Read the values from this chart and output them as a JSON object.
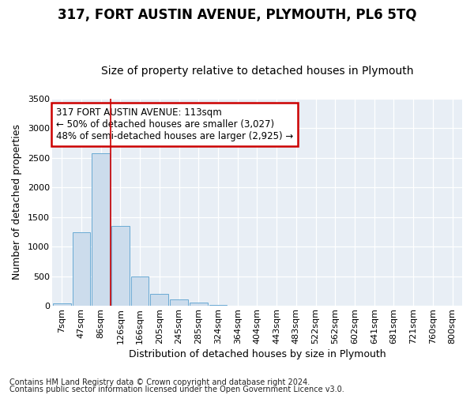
{
  "title": "317, FORT AUSTIN AVENUE, PLYMOUTH, PL6 5TQ",
  "subtitle": "Size of property relative to detached houses in Plymouth",
  "xlabel": "Distribution of detached houses by size in Plymouth",
  "ylabel": "Number of detached properties",
  "footnote1": "Contains HM Land Registry data © Crown copyright and database right 2024.",
  "footnote2": "Contains public sector information licensed under the Open Government Licence v3.0.",
  "bar_labels": [
    "7sqm",
    "47sqm",
    "86sqm",
    "126sqm",
    "166sqm",
    "205sqm",
    "245sqm",
    "285sqm",
    "324sqm",
    "364sqm",
    "404sqm",
    "443sqm",
    "483sqm",
    "522sqm",
    "562sqm",
    "602sqm",
    "641sqm",
    "681sqm",
    "721sqm",
    "760sqm",
    "800sqm"
  ],
  "bar_values": [
    50,
    1240,
    2580,
    1350,
    490,
    200,
    115,
    60,
    18,
    8,
    4,
    2,
    2,
    0,
    0,
    0,
    0,
    0,
    0,
    0,
    0
  ],
  "bar_color": "#ccdcec",
  "bar_edge_color": "#6aaad4",
  "vline_x": 2.5,
  "vline_color": "#cc0000",
  "annotation_text": "317 FORT AUSTIN AVENUE: 113sqm\n← 50% of detached houses are smaller (3,027)\n48% of semi-detached houses are larger (2,925) →",
  "annotation_box_color": "#ffffff",
  "annotation_box_edge": "#cc0000",
  "ylim": [
    0,
    3500
  ],
  "yticks": [
    0,
    500,
    1000,
    1500,
    2000,
    2500,
    3000,
    3500
  ],
  "fig_bg_color": "#ffffff",
  "plot_bg_color": "#e8eef5",
  "title_fontsize": 12,
  "subtitle_fontsize": 10,
  "axis_label_fontsize": 9,
  "tick_fontsize": 8,
  "footnote_fontsize": 7
}
